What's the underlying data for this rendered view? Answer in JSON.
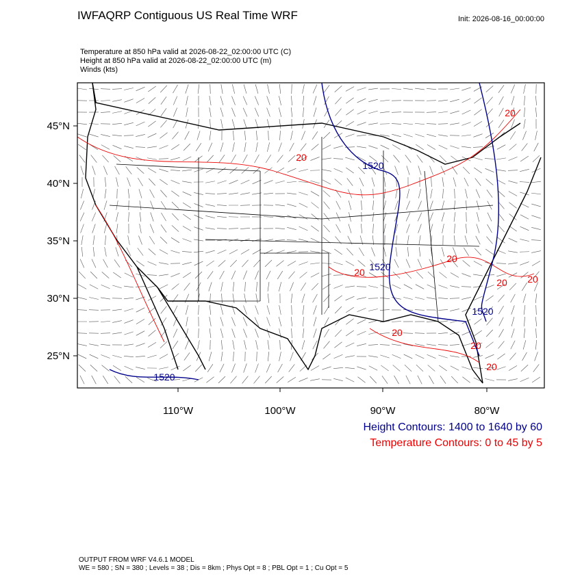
{
  "header": {
    "title": "IWFAQRP Contiguous US Real Time WRF",
    "init": "Init: 2026-08-16_00:00:00"
  },
  "fields": [
    "Temperature at 850 hPa valid at 2026-08-22_02:00:00 UTC   (C)",
    "Height at 850 hPa valid at 2026-08-22_02:00:00 UTC   (m)",
    "Winds   (kts)"
  ],
  "lat_labels": [
    "45°N",
    "40°N",
    "35°N",
    "30°N",
    "25°N"
  ],
  "lon_labels": [
    "110°W",
    "100°W",
    "90°W",
    "80°W"
  ],
  "height_labels": [
    "1520",
    "1520",
    "1520",
    "1520"
  ],
  "temperature_labels": [
    "20",
    "20",
    "20",
    "20",
    "20",
    "20",
    "20",
    "20",
    "20"
  ],
  "legend": [
    "Height Contours: 1400 to 1640 by 60",
    "Temperature Contours: 0 to 45 by 5"
  ],
  "footer": [
    "OUTPUT FROM WRF V4.6.1 MODEL",
    "WE = 580 ; SN = 380 ; Levels = 38 ; Dis = 8km ; Phys Opt = 8 ; PBL Opt = 1 ; Cu Opt = 5"
  ]
}
